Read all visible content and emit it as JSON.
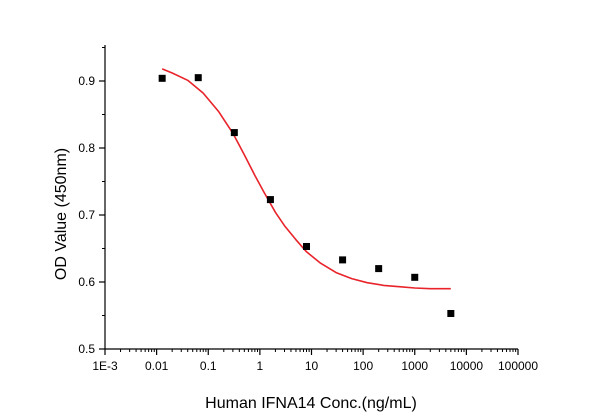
{
  "chart_data": {
    "type": "scatter",
    "title": "",
    "xlabel": "Human IFNA14 Conc.(ng/mL)",
    "ylabel": "OD Value (450nm)",
    "x_scale": "log",
    "xlim": [
      0.001,
      100000
    ],
    "ylim": [
      0.5,
      0.95
    ],
    "x_tick_labels": [
      "1E-3",
      "0.01",
      "0.1",
      "1",
      "10",
      "100",
      "1000",
      "10000",
      "100000"
    ],
    "x_tick_values": [
      0.001,
      0.01,
      0.1,
      1,
      10,
      100,
      1000,
      10000,
      100000
    ],
    "y_tick_labels": [
      "0.5",
      "0.6",
      "0.7",
      "0.8",
      "0.9"
    ],
    "y_tick_values": [
      0.5,
      0.6,
      0.7,
      0.8,
      0.9
    ],
    "grid": false,
    "series": [
      {
        "kind": "points",
        "marker": "square",
        "color": "#000000",
        "x": [
          0.0128,
          0.064,
          0.32,
          1.6,
          8,
          40,
          200,
          1000,
          5000
        ],
        "y": [
          0.904,
          0.905,
          0.823,
          0.723,
          0.653,
          0.633,
          0.62,
          0.607,
          0.553
        ]
      },
      {
        "kind": "fit-curve",
        "color": "#e8232a",
        "x": [
          0.0128,
          0.02,
          0.04,
          0.08,
          0.16,
          0.3,
          0.5,
          0.8,
          1.2,
          2,
          3,
          5,
          8,
          15,
          30,
          60,
          120,
          250,
          500,
          1000,
          2000,
          5000
        ],
        "y": [
          0.918,
          0.912,
          0.901,
          0.882,
          0.854,
          0.822,
          0.79,
          0.759,
          0.734,
          0.704,
          0.684,
          0.663,
          0.645,
          0.628,
          0.614,
          0.605,
          0.599,
          0.595,
          0.593,
          0.591,
          0.59,
          0.59
        ]
      }
    ]
  }
}
